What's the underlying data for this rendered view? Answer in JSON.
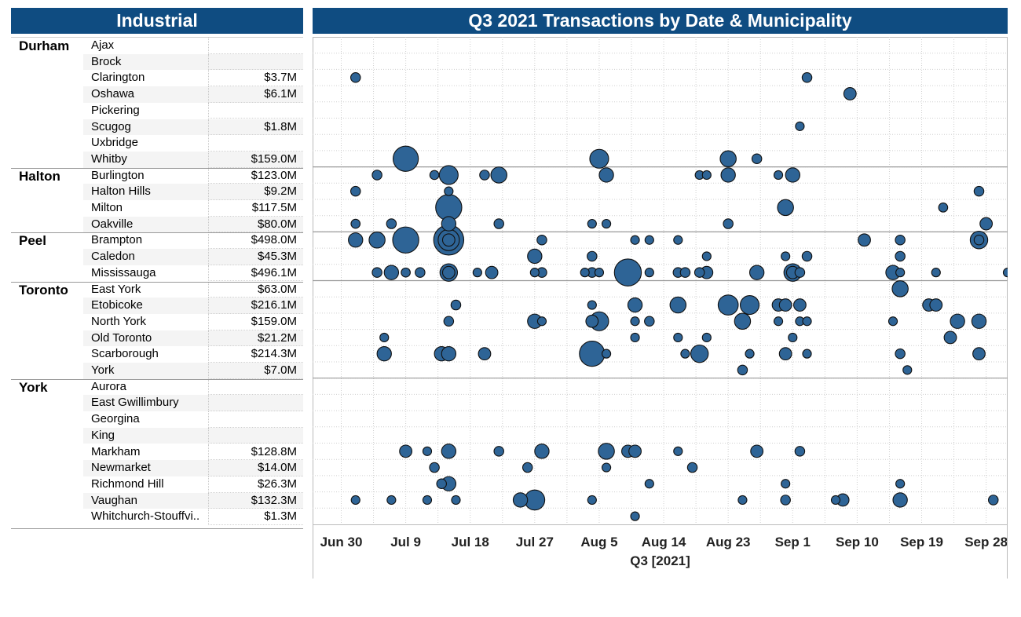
{
  "left_header": "Industrial",
  "right_header": "Q3 2021 Transactions by Date & Municipality",
  "colors": {
    "header_bg": "#0f4c81",
    "bubble_fill": "#2e6496",
    "bubble_stroke": "#111111",
    "grid": "#cfcfcf"
  },
  "regions": [
    {
      "name": "Durham",
      "rows": [
        {
          "municipality": "Ajax",
          "value": ""
        },
        {
          "municipality": "Brock",
          "value": ""
        },
        {
          "municipality": "Clarington",
          "value": "$3.7M"
        },
        {
          "municipality": "Oshawa",
          "value": "$6.1M"
        },
        {
          "municipality": "Pickering",
          "value": ""
        },
        {
          "municipality": "Scugog",
          "value": "$1.8M"
        },
        {
          "municipality": "Uxbridge",
          "value": ""
        },
        {
          "municipality": "Whitby",
          "value": "$159.0M"
        }
      ]
    },
    {
      "name": "Halton",
      "rows": [
        {
          "municipality": "Burlington",
          "value": "$123.0M"
        },
        {
          "municipality": "Halton Hills",
          "value": "$9.2M"
        },
        {
          "municipality": "Milton",
          "value": "$117.5M"
        },
        {
          "municipality": "Oakville",
          "value": "$80.0M"
        }
      ]
    },
    {
      "name": "Peel",
      "rows": [
        {
          "municipality": "Brampton",
          "value": "$498.0M"
        },
        {
          "municipality": "Caledon",
          "value": "$45.3M"
        },
        {
          "municipality": "Mississauga",
          "value": "$496.1M"
        }
      ]
    },
    {
      "name": "Toronto",
      "rows": [
        {
          "municipality": "East York",
          "value": "$63.0M"
        },
        {
          "municipality": "Etobicoke",
          "value": "$216.1M"
        },
        {
          "municipality": "North York",
          "value": "$159.0M"
        },
        {
          "municipality": "Old Toronto",
          "value": "$21.2M"
        },
        {
          "municipality": "Scarborough",
          "value": "$214.3M"
        },
        {
          "municipality": "York",
          "value": "$7.0M"
        }
      ]
    },
    {
      "name": "York",
      "rows": [
        {
          "municipality": "Aurora",
          "value": ""
        },
        {
          "municipality": "East Gwillimbury",
          "value": ""
        },
        {
          "municipality": "Georgina",
          "value": ""
        },
        {
          "municipality": "King",
          "value": ""
        },
        {
          "municipality": "Markham",
          "value": "$128.8M"
        },
        {
          "municipality": "Newmarket",
          "value": "$14.0M"
        },
        {
          "municipality": "Richmond Hill",
          "value": "$26.3M"
        },
        {
          "municipality": "Vaughan",
          "value": "$132.3M"
        },
        {
          "municipality": "Whitchurch-Stouffvi..",
          "value": "$1.3M"
        }
      ]
    }
  ],
  "chart_data": {
    "type": "scatter",
    "title": "Q3 2021 Transactions by Date & Municipality",
    "xlabel": "Q3 [2021]",
    "xlim": [
      "2021-06-26",
      "2021-10-01"
    ],
    "x_ticks": [
      "Jun 30",
      "Jul 9",
      "Jul 18",
      "Jul 27",
      "Aug 5",
      "Aug 14",
      "Aug 23",
      "Sep 1",
      "Sep 10",
      "Sep 19",
      "Sep 28"
    ],
    "x_tick_dates": [
      "2021-06-30",
      "2021-07-09",
      "2021-07-18",
      "2021-07-27",
      "2021-08-05",
      "2021-08-14",
      "2021-08-23",
      "2021-09-01",
      "2021-09-10",
      "2021-09-19",
      "2021-09-28"
    ],
    "grid": true,
    "size_encoding": "transaction value",
    "points": [
      {
        "m": "Clarington",
        "d": "2021-07-02",
        "s": 1
      },
      {
        "m": "Clarington",
        "d": "2021-09-03",
        "s": 1
      },
      {
        "m": "Oshawa",
        "d": "2021-09-09",
        "s": 2
      },
      {
        "m": "Scugog",
        "d": "2021-09-02",
        "s": 0.7
      },
      {
        "m": "Whitby",
        "d": "2021-07-09",
        "s": 12
      },
      {
        "m": "Whitby",
        "d": "2021-08-05",
        "s": 6
      },
      {
        "m": "Whitby",
        "d": "2021-08-23",
        "s": 4
      },
      {
        "m": "Whitby",
        "d": "2021-08-27",
        "s": 1
      },
      {
        "m": "Burlington",
        "d": "2021-07-05",
        "s": 1
      },
      {
        "m": "Burlington",
        "d": "2021-07-13",
        "s": 0.8
      },
      {
        "m": "Burlington",
        "d": "2021-07-15",
        "s": 6
      },
      {
        "m": "Burlington",
        "d": "2021-07-20",
        "s": 1
      },
      {
        "m": "Burlington",
        "d": "2021-07-22",
        "s": 4
      },
      {
        "m": "Burlington",
        "d": "2021-08-06",
        "s": 3
      },
      {
        "m": "Burlington",
        "d": "2021-08-19",
        "s": 0.7
      },
      {
        "m": "Burlington",
        "d": "2021-08-20",
        "s": 0.7
      },
      {
        "m": "Burlington",
        "d": "2021-08-23",
        "s": 3
      },
      {
        "m": "Burlington",
        "d": "2021-08-30",
        "s": 0.7
      },
      {
        "m": "Burlington",
        "d": "2021-09-01",
        "s": 3
      },
      {
        "m": "Halton Hills",
        "d": "2021-07-02",
        "s": 1
      },
      {
        "m": "Halton Hills",
        "d": "2021-07-15",
        "s": 0.7
      },
      {
        "m": "Halton Hills",
        "d": "2021-09-27",
        "s": 1
      },
      {
        "m": "Milton",
        "d": "2021-07-15",
        "s": 13
      },
      {
        "m": "Milton",
        "d": "2021-08-31",
        "s": 4
      },
      {
        "m": "Milton",
        "d": "2021-09-22",
        "s": 0.8
      },
      {
        "m": "Oakville",
        "d": "2021-07-02",
        "s": 0.8
      },
      {
        "m": "Oakville",
        "d": "2021-07-07",
        "s": 1
      },
      {
        "m": "Oakville",
        "d": "2021-07-15",
        "s": 3
      },
      {
        "m": "Oakville",
        "d": "2021-07-22",
        "s": 1
      },
      {
        "m": "Oakville",
        "d": "2021-08-04",
        "s": 0.7
      },
      {
        "m": "Oakville",
        "d": "2021-08-06",
        "s": 0.7
      },
      {
        "m": "Oakville",
        "d": "2021-08-23",
        "s": 1
      },
      {
        "m": "Oakville",
        "d": "2021-09-28",
        "s": 2
      },
      {
        "m": "Brampton",
        "d": "2021-07-02",
        "s": 3
      },
      {
        "m": "Brampton",
        "d": "2021-07-05",
        "s": 4
      },
      {
        "m": "Brampton",
        "d": "2021-07-09",
        "s": 13
      },
      {
        "m": "Brampton",
        "d": "2021-07-15",
        "s": 18
      },
      {
        "m": "Brampton",
        "d": "2021-07-15",
        "s": 8
      },
      {
        "m": "Brampton",
        "d": "2021-07-15",
        "s": 2
      },
      {
        "m": "Brampton",
        "d": "2021-07-28",
        "s": 1
      },
      {
        "m": "Brampton",
        "d": "2021-08-10",
        "s": 0.7
      },
      {
        "m": "Brampton",
        "d": "2021-08-12",
        "s": 0.7
      },
      {
        "m": "Brampton",
        "d": "2021-08-16",
        "s": 0.7
      },
      {
        "m": "Brampton",
        "d": "2021-09-11",
        "s": 2
      },
      {
        "m": "Brampton",
        "d": "2021-09-16",
        "s": 1
      },
      {
        "m": "Brampton",
        "d": "2021-09-27",
        "s": 5
      },
      {
        "m": "Brampton",
        "d": "2021-09-27",
        "s": 1
      },
      {
        "m": "Caledon",
        "d": "2021-07-27",
        "s": 3
      },
      {
        "m": "Caledon",
        "d": "2021-08-04",
        "s": 1
      },
      {
        "m": "Caledon",
        "d": "2021-08-20",
        "s": 0.7
      },
      {
        "m": "Caledon",
        "d": "2021-08-31",
        "s": 0.7
      },
      {
        "m": "Caledon",
        "d": "2021-09-03",
        "s": 1
      },
      {
        "m": "Caledon",
        "d": "2021-09-16",
        "s": 1
      },
      {
        "m": "Mississauga",
        "d": "2021-07-05",
        "s": 1
      },
      {
        "m": "Mississauga",
        "d": "2021-07-07",
        "s": 3
      },
      {
        "m": "Mississauga",
        "d": "2021-07-09",
        "s": 0.8
      },
      {
        "m": "Mississauga",
        "d": "2021-07-11",
        "s": 1
      },
      {
        "m": "Mississauga",
        "d": "2021-07-15",
        "s": 5
      },
      {
        "m": "Mississauga",
        "d": "2021-07-15",
        "s": 2
      },
      {
        "m": "Mississauga",
        "d": "2021-07-19",
        "s": 0.7
      },
      {
        "m": "Mississauga",
        "d": "2021-07-21",
        "s": 2
      },
      {
        "m": "Mississauga",
        "d": "2021-07-27",
        "s": 0.7
      },
      {
        "m": "Mississauga",
        "d": "2021-07-28",
        "s": 1
      },
      {
        "m": "Mississauga",
        "d": "2021-08-03",
        "s": 0.7
      },
      {
        "m": "Mississauga",
        "d": "2021-08-04",
        "s": 1
      },
      {
        "m": "Mississauga",
        "d": "2021-08-05",
        "s": 0.7
      },
      {
        "m": "Mississauga",
        "d": "2021-08-09",
        "s": 14
      },
      {
        "m": "Mississauga",
        "d": "2021-08-12",
        "s": 0.7
      },
      {
        "m": "Mississauga",
        "d": "2021-08-16",
        "s": 1
      },
      {
        "m": "Mississauga",
        "d": "2021-08-17",
        "s": 1
      },
      {
        "m": "Mississauga",
        "d": "2021-08-19",
        "s": 1
      },
      {
        "m": "Mississauga",
        "d": "2021-08-20",
        "s": 2
      },
      {
        "m": "Mississauga",
        "d": "2021-08-27",
        "s": 3
      },
      {
        "m": "Mississauga",
        "d": "2021-09-01",
        "s": 5
      },
      {
        "m": "Mississauga",
        "d": "2021-09-01",
        "s": 2
      },
      {
        "m": "Mississauga",
        "d": "2021-09-02",
        "s": 1
      },
      {
        "m": "Mississauga",
        "d": "2021-09-15",
        "s": 3
      },
      {
        "m": "Mississauga",
        "d": "2021-09-16",
        "s": 0.7
      },
      {
        "m": "Mississauga",
        "d": "2021-09-21",
        "s": 0.7
      },
      {
        "m": "Mississauga",
        "d": "2021-10-01",
        "s": 0.7
      },
      {
        "m": "East York",
        "d": "2021-09-16",
        "s": 4
      },
      {
        "m": "Etobicoke",
        "d": "2021-07-16",
        "s": 1
      },
      {
        "m": "Etobicoke",
        "d": "2021-08-04",
        "s": 0.7
      },
      {
        "m": "Etobicoke",
        "d": "2021-08-10",
        "s": 3
      },
      {
        "m": "Etobicoke",
        "d": "2021-08-16",
        "s": 4
      },
      {
        "m": "Etobicoke",
        "d": "2021-08-23",
        "s": 7
      },
      {
        "m": "Etobicoke",
        "d": "2021-08-26",
        "s": 6
      },
      {
        "m": "Etobicoke",
        "d": "2021-08-30",
        "s": 2
      },
      {
        "m": "Etobicoke",
        "d": "2021-08-31",
        "s": 2
      },
      {
        "m": "Etobicoke",
        "d": "2021-09-02",
        "s": 2
      },
      {
        "m": "Etobicoke",
        "d": "2021-09-20",
        "s": 2
      },
      {
        "m": "Etobicoke",
        "d": "2021-09-21",
        "s": 2
      },
      {
        "m": "North York",
        "d": "2021-07-15",
        "s": 1
      },
      {
        "m": "North York",
        "d": "2021-07-27",
        "s": 3
      },
      {
        "m": "North York",
        "d": "2021-07-28",
        "s": 0.7
      },
      {
        "m": "North York",
        "d": "2021-08-04",
        "s": 2
      },
      {
        "m": "North York",
        "d": "2021-08-05",
        "s": 6
      },
      {
        "m": "North York",
        "d": "2021-08-10",
        "s": 0.7
      },
      {
        "m": "North York",
        "d": "2021-08-12",
        "s": 1
      },
      {
        "m": "North York",
        "d": "2021-08-25",
        "s": 4
      },
      {
        "m": "North York",
        "d": "2021-08-30",
        "s": 0.7
      },
      {
        "m": "North York",
        "d": "2021-09-02",
        "s": 0.7
      },
      {
        "m": "North York",
        "d": "2021-09-03",
        "s": 0.7
      },
      {
        "m": "North York",
        "d": "2021-09-15",
        "s": 0.7
      },
      {
        "m": "North York",
        "d": "2021-09-24",
        "s": 3
      },
      {
        "m": "North York",
        "d": "2021-09-27",
        "s": 3
      },
      {
        "m": "Old Toronto",
        "d": "2021-07-06",
        "s": 0.7
      },
      {
        "m": "Old Toronto",
        "d": "2021-08-10",
        "s": 0.7
      },
      {
        "m": "Old Toronto",
        "d": "2021-08-16",
        "s": 0.7
      },
      {
        "m": "Old Toronto",
        "d": "2021-08-20",
        "s": 0.7
      },
      {
        "m": "Old Toronto",
        "d": "2021-09-01",
        "s": 0.7
      },
      {
        "m": "Old Toronto",
        "d": "2021-09-23",
        "s": 2
      },
      {
        "m": "Scarborough",
        "d": "2021-07-06",
        "s": 3
      },
      {
        "m": "Scarborough",
        "d": "2021-07-14",
        "s": 3
      },
      {
        "m": "Scarborough",
        "d": "2021-07-15",
        "s": 3
      },
      {
        "m": "Scarborough",
        "d": "2021-07-20",
        "s": 2
      },
      {
        "m": "Scarborough",
        "d": "2021-08-04",
        "s": 12
      },
      {
        "m": "Scarborough",
        "d": "2021-08-06",
        "s": 0.7
      },
      {
        "m": "Scarborough",
        "d": "2021-08-17",
        "s": 0.7
      },
      {
        "m": "Scarborough",
        "d": "2021-08-19",
        "s": 5
      },
      {
        "m": "Scarborough",
        "d": "2021-08-26",
        "s": 0.7
      },
      {
        "m": "Scarborough",
        "d": "2021-08-31",
        "s": 2
      },
      {
        "m": "Scarborough",
        "d": "2021-09-03",
        "s": 0.7
      },
      {
        "m": "Scarborough",
        "d": "2021-09-16",
        "s": 1
      },
      {
        "m": "Scarborough",
        "d": "2021-09-27",
        "s": 2
      },
      {
        "m": "York",
        "d": "2021-08-25",
        "s": 1
      },
      {
        "m": "York",
        "d": "2021-09-17",
        "s": 0.7
      },
      {
        "m": "Markham",
        "d": "2021-07-09",
        "s": 2
      },
      {
        "m": "Markham",
        "d": "2021-07-12",
        "s": 0.7
      },
      {
        "m": "Markham",
        "d": "2021-07-15",
        "s": 3
      },
      {
        "m": "Markham",
        "d": "2021-07-22",
        "s": 1
      },
      {
        "m": "Markham",
        "d": "2021-07-28",
        "s": 3
      },
      {
        "m": "Markham",
        "d": "2021-08-06",
        "s": 4
      },
      {
        "m": "Markham",
        "d": "2021-08-09",
        "s": 2
      },
      {
        "m": "Markham",
        "d": "2021-08-10",
        "s": 2
      },
      {
        "m": "Markham",
        "d": "2021-08-16",
        "s": 0.7
      },
      {
        "m": "Markham",
        "d": "2021-08-27",
        "s": 2
      },
      {
        "m": "Markham",
        "d": "2021-09-02",
        "s": 1
      },
      {
        "m": "Newmarket",
        "d": "2021-07-13",
        "s": 1
      },
      {
        "m": "Newmarket",
        "d": "2021-07-26",
        "s": 1
      },
      {
        "m": "Newmarket",
        "d": "2021-08-06",
        "s": 0.7
      },
      {
        "m": "Newmarket",
        "d": "2021-08-18",
        "s": 1
      },
      {
        "m": "Richmond Hill",
        "d": "2021-07-14",
        "s": 1
      },
      {
        "m": "Richmond Hill",
        "d": "2021-07-15",
        "s": 3
      },
      {
        "m": "Richmond Hill",
        "d": "2021-08-12",
        "s": 0.7
      },
      {
        "m": "Richmond Hill",
        "d": "2021-08-31",
        "s": 0.7
      },
      {
        "m": "Richmond Hill",
        "d": "2021-09-16",
        "s": 0.7
      },
      {
        "m": "Vaughan",
        "d": "2021-07-02",
        "s": 0.7
      },
      {
        "m": "Vaughan",
        "d": "2021-07-07",
        "s": 0.7
      },
      {
        "m": "Vaughan",
        "d": "2021-07-12",
        "s": 0.7
      },
      {
        "m": "Vaughan",
        "d": "2021-07-16",
        "s": 0.7
      },
      {
        "m": "Vaughan",
        "d": "2021-07-25",
        "s": 3
      },
      {
        "m": "Vaughan",
        "d": "2021-07-27",
        "s": 7
      },
      {
        "m": "Vaughan",
        "d": "2021-08-04",
        "s": 0.7
      },
      {
        "m": "Vaughan",
        "d": "2021-08-25",
        "s": 0.7
      },
      {
        "m": "Vaughan",
        "d": "2021-08-31",
        "s": 1
      },
      {
        "m": "Vaughan",
        "d": "2021-09-07",
        "s": 0.7
      },
      {
        "m": "Vaughan",
        "d": "2021-09-08",
        "s": 2
      },
      {
        "m": "Vaughan",
        "d": "2021-09-16",
        "s": 3
      },
      {
        "m": "Vaughan",
        "d": "2021-09-29",
        "s": 1
      },
      {
        "m": "Whitchurch-Stouffvi..",
        "d": "2021-08-10",
        "s": 0.7
      }
    ]
  }
}
